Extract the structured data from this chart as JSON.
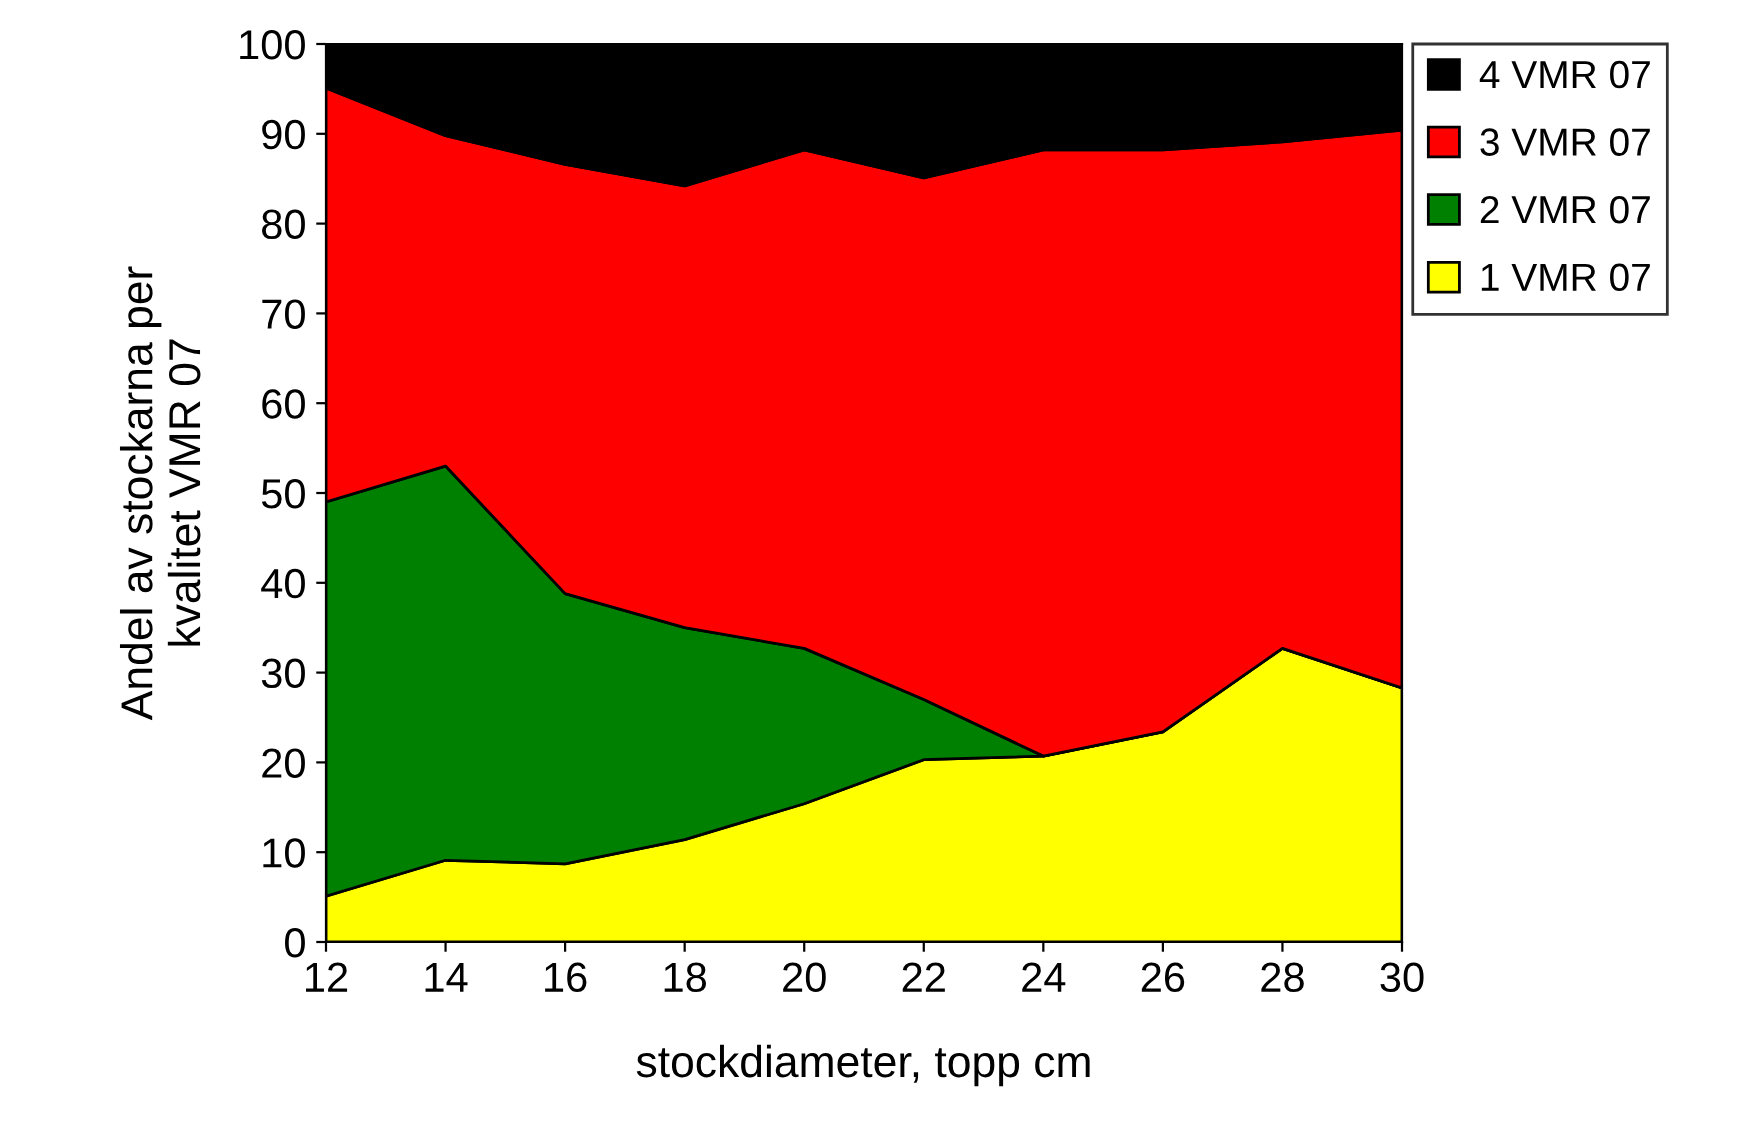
{
  "chart_data": {
    "type": "area",
    "stacked": true,
    "xlabel": "stockdiameter, topp cm",
    "ylabel": "Andel av stockarna per\nkvalitet VMR 07",
    "x": [
      12,
      14,
      16,
      18,
      20,
      22,
      24,
      26,
      28,
      30
    ],
    "series": [
      {
        "name": "1 VMR 07",
        "color": "#ffff00",
        "values": [
          5.1,
          9.1,
          8.7,
          11.4,
          15.4,
          20.3,
          20.7,
          23.4,
          32.7,
          28.3
        ]
      },
      {
        "name": "2 VMR 07",
        "color": "#008000",
        "values": [
          43.9,
          43.9,
          30.1,
          23.6,
          17.3,
          6.7,
          0,
          0,
          0,
          0
        ]
      },
      {
        "name": "3 VMR 07",
        "color": "#ff0000",
        "values": [
          46.1,
          36.8,
          47.8,
          49.2,
          55.5,
          58.1,
          67.5,
          64.8,
          56.4,
          62.1
        ]
      },
      {
        "name": "4 VMR 07",
        "color": "#000000",
        "values": [
          4.9,
          10.2,
          13.4,
          15.8,
          11.8,
          14.9,
          11.8,
          11.8,
          10.9,
          9.6
        ]
      }
    ],
    "xlim": [
      12,
      30
    ],
    "xticks": [
      12,
      14,
      16,
      18,
      20,
      22,
      24,
      26,
      28,
      30
    ],
    "ylim": [
      0,
      100
    ],
    "yticks": [
      0,
      10,
      20,
      30,
      40,
      50,
      60,
      70,
      80,
      90,
      100
    ],
    "grid": false,
    "legend": "top right"
  }
}
